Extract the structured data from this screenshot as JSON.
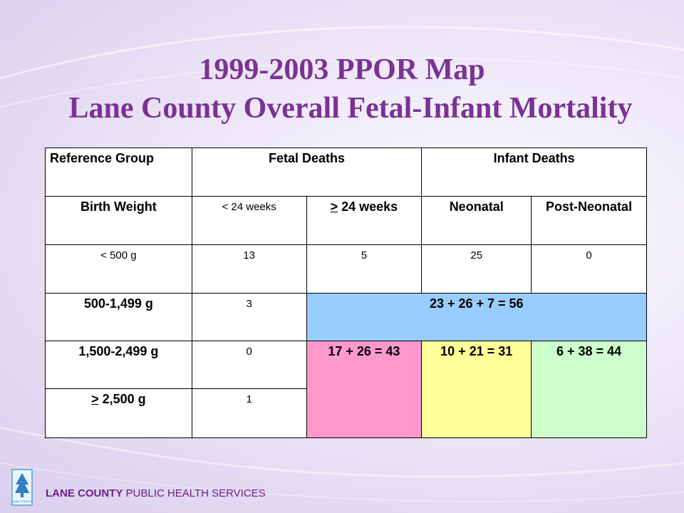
{
  "title_line1": "1999-2003 PPOR Map",
  "title_line2": "Lane County Overall Fetal-Infant Mortality",
  "table": {
    "h_reference": "Reference Group",
    "h_fetal": "Fetal Deaths",
    "h_infant": "Infant Deaths",
    "h_birth_weight": "Birth Weight",
    "h_lt24": "< 24 weeks",
    "h_ge24_mark": ">",
    "h_ge24_rest": " 24 weeks",
    "h_neonatal": "Neonatal",
    "h_postneonatal": "Post-Neonatal",
    "rows": [
      {
        "label": "< 500 g",
        "lt24": "13",
        "ge24": "5",
        "neonatal": "25",
        "postneonatal": "0"
      },
      {
        "label": "500-1,499 g",
        "lt24": "3",
        "merged": "23 + 26 + 7 = 56"
      },
      {
        "label": "1,500-2,499 g",
        "lt24": "0",
        "maternal_care": "17 + 26 = 43",
        "newborn_care": "10 + 21 = 31",
        "infant_health": "6 + 38 = 44"
      },
      {
        "label_mark": ">",
        "label_rest": " 2,500 g",
        "lt24": "1"
      }
    ]
  },
  "colors": {
    "title": "#7b3294",
    "maternal_health": "#99ccff",
    "maternal_care": "#ff99cc",
    "newborn_care": "#ffff99",
    "infant_health": "#ccffcc"
  },
  "footer": {
    "org_bold": "LANE COUNTY",
    "org_rest": " PUBLIC HEALTH SERVICES"
  },
  "logo_text": "LANE COUNTY"
}
